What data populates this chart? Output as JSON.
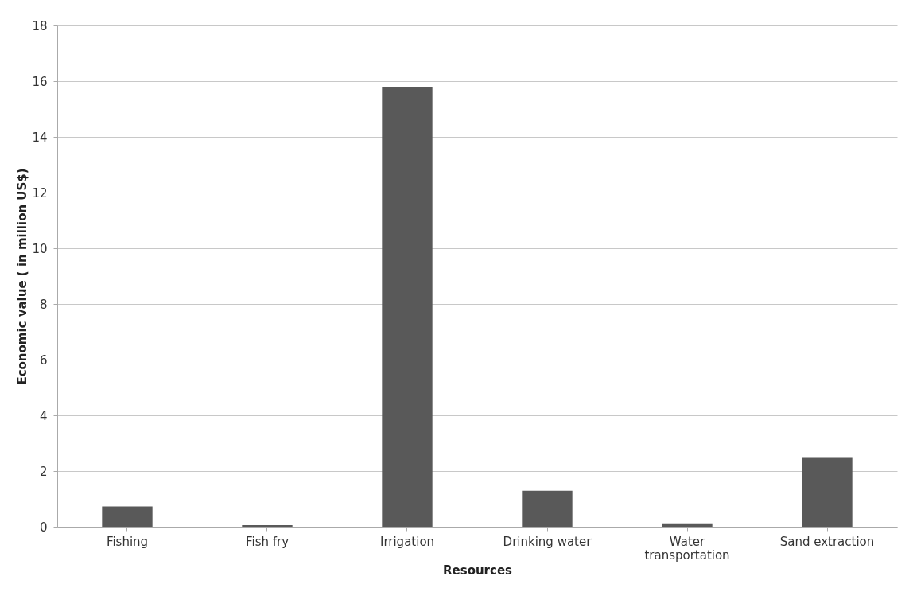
{
  "chart_data": {
    "type": "bar",
    "xlabel": "Resources",
    "ylabel": "Economic value ( in million US$)",
    "categories": [
      "Fishing",
      "Fish fry",
      "Irrigation",
      "Drinking water",
      "Water transportation",
      "Sand extraction"
    ],
    "values": [
      0.73,
      0.06,
      15.8,
      1.29,
      0.12,
      2.5
    ],
    "color": "#595959",
    "ylim": [
      0,
      18
    ],
    "yticks": [
      0,
      2,
      4,
      6,
      8,
      10,
      12,
      14,
      16,
      18
    ],
    "grid": "y"
  }
}
